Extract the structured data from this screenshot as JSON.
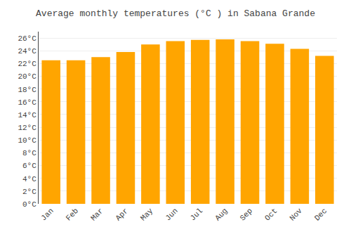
{
  "chart_data": {
    "type": "bar",
    "title": "Average monthly temperatures (°C ) in Sabana Grande",
    "categories": [
      "Jan",
      "Feb",
      "Mar",
      "Apr",
      "May",
      "Jun",
      "Jul",
      "Aug",
      "Sep",
      "Oct",
      "Nov",
      "Dec"
    ],
    "values": [
      22.5,
      22.5,
      23.0,
      23.8,
      25.0,
      25.5,
      25.7,
      25.8,
      25.5,
      25.1,
      24.3,
      23.2
    ],
    "color": "#FFA500",
    "ylim": [
      0,
      27
    ],
    "yticks": [
      {
        "value": 0,
        "label": "0°C"
      },
      {
        "value": 2,
        "label": "2°C"
      },
      {
        "value": 4,
        "label": "4°C"
      },
      {
        "value": 6,
        "label": "6°C"
      },
      {
        "value": 8,
        "label": "8°C"
      },
      {
        "value": 10,
        "label": "10°C"
      },
      {
        "value": 12,
        "label": "12°C"
      },
      {
        "value": 14,
        "label": "14°C"
      },
      {
        "value": 16,
        "label": "16°C"
      },
      {
        "value": 18,
        "label": "18°C"
      },
      {
        "value": 20,
        "label": "20°C"
      },
      {
        "value": 22,
        "label": "22°C"
      },
      {
        "value": 24,
        "label": "24°C"
      },
      {
        "value": 26,
        "label": "26°C"
      }
    ],
    "grid": true
  }
}
